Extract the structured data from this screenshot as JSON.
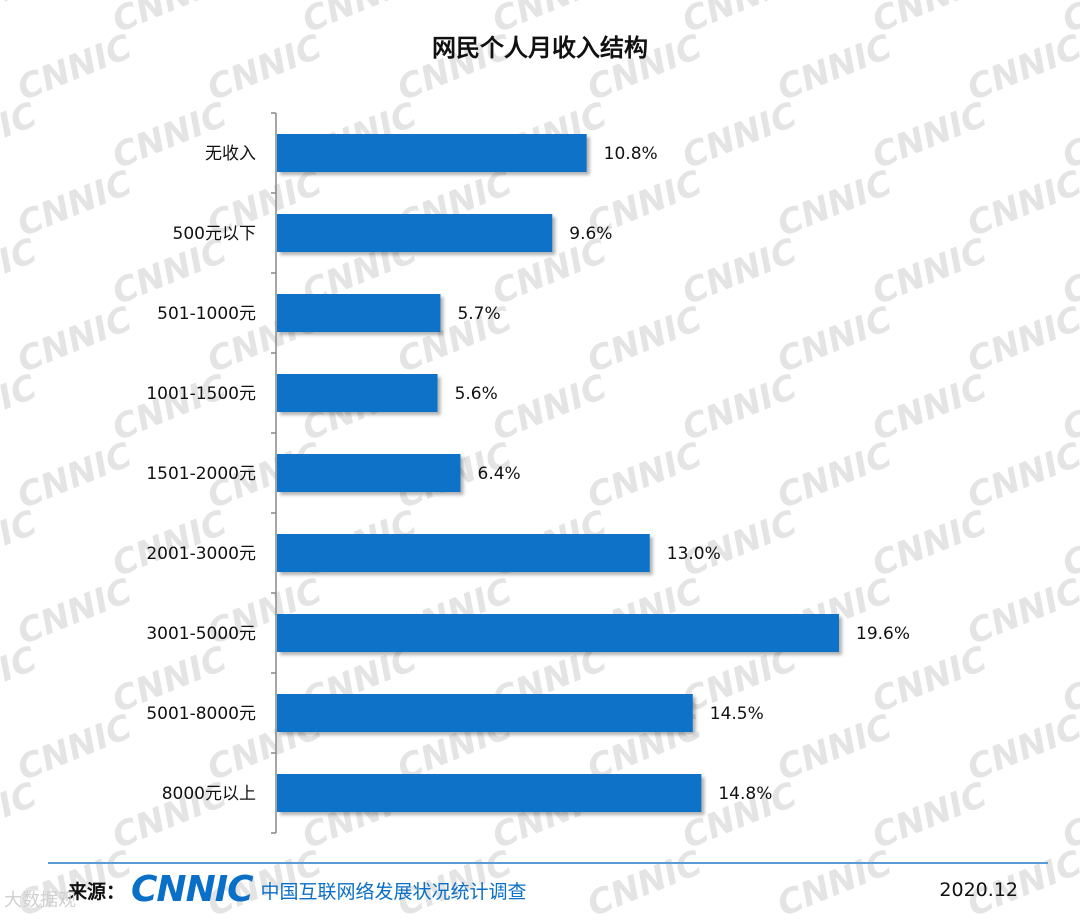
{
  "chart_data": {
    "type": "bar",
    "orientation": "horizontal",
    "title": "网民个人月收入结构",
    "categories": [
      "无收入",
      "500元以下",
      "501-1000元",
      "1001-1500元",
      "1501-2000元",
      "2001-3000元",
      "3001-5000元",
      "5001-8000元",
      "8000元以上"
    ],
    "values": [
      10.8,
      9.6,
      5.7,
      5.6,
      6.4,
      13.0,
      19.6,
      14.5,
      14.8
    ],
    "value_labels": [
      "10.8%",
      "9.6%",
      "5.7%",
      "5.6%",
      "6.4%",
      "13.0%",
      "19.6%",
      "14.5%",
      "14.8%"
    ],
    "xlabel": "",
    "ylabel": "",
    "xlim": [
      0,
      19.6
    ],
    "grid": false,
    "legend": "none",
    "bar_color": "#0a72c8"
  },
  "footer": {
    "source_label": "来源：",
    "brand_logo": "CNNIC",
    "brand_subtitle": "中国互联网络发展状况统计调查",
    "date": "2020.12"
  },
  "watermark": {
    "text": "CNNIC",
    "color": "#e4e4e4"
  },
  "corner_watermark": "大数据观"
}
